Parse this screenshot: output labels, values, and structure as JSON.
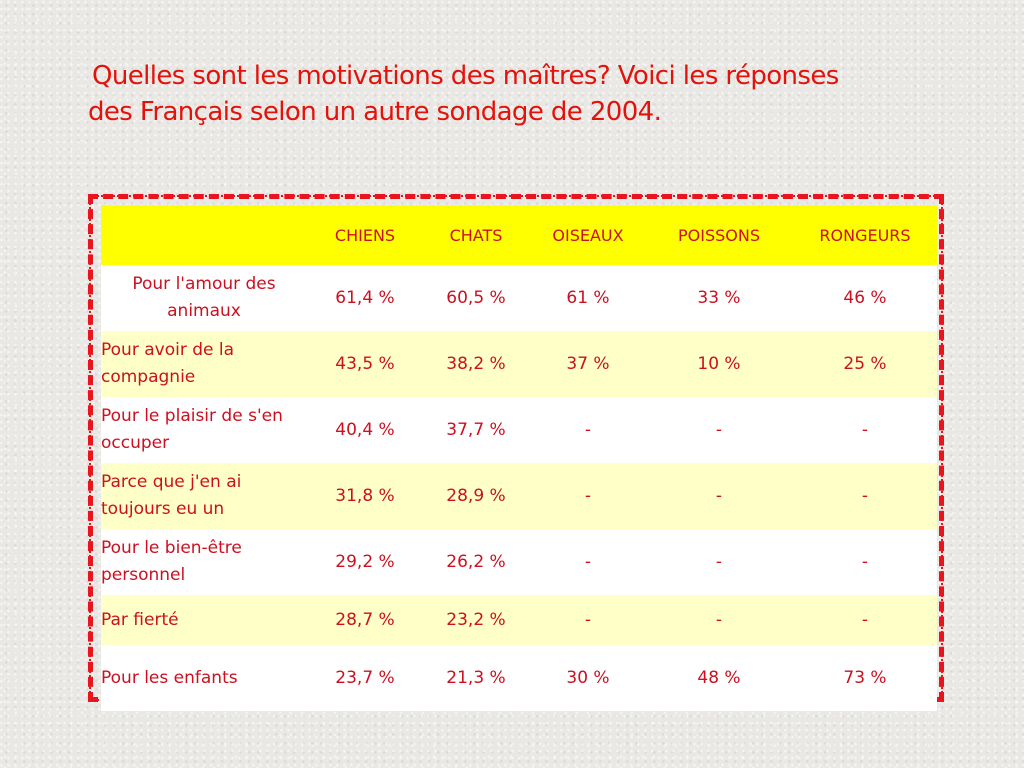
{
  "title": {
    "line1": "Quelles sont les motivations des maîtres? Voici les réponses",
    "line2": "des Français selon un autre sondage de 2004."
  },
  "table": {
    "headers": [
      "",
      "CHIENS",
      "CHATS",
      "OISEAUX",
      "POISSONS",
      "RONGEURS"
    ],
    "rows": [
      {
        "label": "Pour l'amour des animaux",
        "values": [
          "61,4 %",
          "60,5 %",
          "61 %",
          "33 %",
          "46 %"
        ]
      },
      {
        "label": "Pour avoir de la compagnie",
        "values": [
          "43,5 %",
          "38,2 %",
          "37 %",
          "10 %",
          "25 %"
        ]
      },
      {
        "label": "Pour le plaisir de s'en occuper",
        "values": [
          "40,4 %",
          "37,7 %",
          "-",
          "-",
          "-"
        ]
      },
      {
        "label": "Parce que j'en ai toujours eu un",
        "values": [
          "31,8 %",
          "28,9 %",
          "-",
          "-",
          "-"
        ]
      },
      {
        "label": "Pour le bien-être personnel",
        "values": [
          "29,2 %",
          "26,2 %",
          "-",
          "-",
          "-"
        ]
      },
      {
        "label": "Par fierté",
        "values": [
          "28,7 %",
          "23,2 %",
          "-",
          "-",
          "-"
        ]
      },
      {
        "label": "Pour les enfants",
        "values": [
          "23,7 %",
          "21,3 %",
          "30 %",
          "48 %",
          "73 %"
        ]
      }
    ]
  },
  "colors": {
    "accent": "#e3120b",
    "header_fill": "#ffff00",
    "alt_row_fill": "#ffffc8",
    "border": "#e8141e"
  }
}
